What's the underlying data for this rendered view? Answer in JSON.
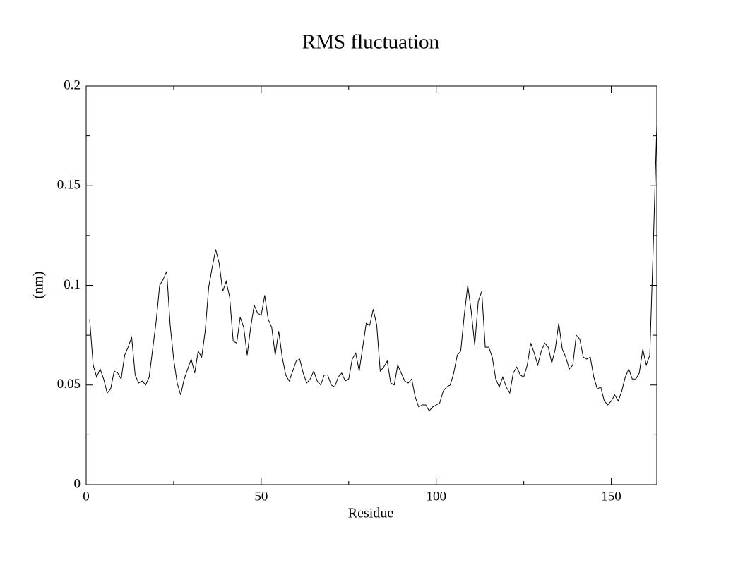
{
  "chart_data": {
    "type": "line",
    "title": "RMS fluctuation",
    "x_label": "Residue",
    "y_label": "(nm)",
    "color": "#000000",
    "xlim": [
      0,
      163
    ],
    "ylim": [
      0,
      0.2
    ],
    "xticks": [
      0,
      50,
      100,
      150
    ],
    "yticks": [
      0,
      0.05,
      0.1,
      0.15,
      0.2
    ],
    "xminorticks": [
      25,
      75,
      125
    ],
    "yminorticks": [
      0.025,
      0.075,
      0.125,
      0.175
    ],
    "x": [
      1,
      2,
      3,
      4,
      5,
      6,
      7,
      8,
      9,
      10,
      11,
      12,
      13,
      14,
      15,
      16,
      17,
      18,
      19,
      20,
      21,
      22,
      23,
      24,
      25,
      26,
      27,
      28,
      29,
      30,
      31,
      32,
      33,
      34,
      35,
      36,
      37,
      38,
      39,
      40,
      41,
      42,
      43,
      44,
      45,
      46,
      47,
      48,
      49,
      50,
      51,
      52,
      53,
      54,
      55,
      56,
      57,
      58,
      59,
      60,
      61,
      62,
      63,
      64,
      65,
      66,
      67,
      68,
      69,
      70,
      71,
      72,
      73,
      74,
      75,
      76,
      77,
      78,
      79,
      80,
      81,
      82,
      83,
      84,
      85,
      86,
      87,
      88,
      89,
      90,
      91,
      92,
      93,
      94,
      95,
      96,
      97,
      98,
      99,
      100,
      101,
      102,
      103,
      104,
      105,
      106,
      107,
      108,
      109,
      110,
      111,
      112,
      113,
      114,
      115,
      116,
      117,
      118,
      119,
      120,
      121,
      122,
      123,
      124,
      125,
      126,
      127,
      128,
      129,
      130,
      131,
      132,
      133,
      134,
      135,
      136,
      137,
      138,
      139,
      140,
      141,
      142,
      143,
      144,
      145,
      146,
      147,
      148,
      149,
      150,
      151,
      152,
      153,
      154,
      155,
      156,
      157,
      158,
      159,
      160,
      161,
      162,
      163
    ],
    "values": [
      0.083,
      0.06,
      0.054,
      0.058,
      0.053,
      0.046,
      0.048,
      0.057,
      0.056,
      0.053,
      0.065,
      0.069,
      0.074,
      0.055,
      0.051,
      0.052,
      0.05,
      0.054,
      0.068,
      0.082,
      0.1,
      0.103,
      0.107,
      0.08,
      0.063,
      0.051,
      0.045,
      0.053,
      0.058,
      0.063,
      0.056,
      0.067,
      0.064,
      0.077,
      0.099,
      0.109,
      0.118,
      0.111,
      0.097,
      0.102,
      0.094,
      0.072,
      0.071,
      0.084,
      0.079,
      0.065,
      0.079,
      0.09,
      0.086,
      0.085,
      0.095,
      0.083,
      0.079,
      0.065,
      0.077,
      0.064,
      0.055,
      0.052,
      0.057,
      0.062,
      0.063,
      0.056,
      0.051,
      0.053,
      0.057,
      0.052,
      0.05,
      0.055,
      0.055,
      0.05,
      0.049,
      0.054,
      0.056,
      0.052,
      0.053,
      0.063,
      0.066,
      0.057,
      0.069,
      0.081,
      0.08,
      0.088,
      0.08,
      0.057,
      0.059,
      0.062,
      0.051,
      0.05,
      0.06,
      0.056,
      0.052,
      0.051,
      0.053,
      0.044,
      0.039,
      0.04,
      0.04,
      0.037,
      0.039,
      0.04,
      0.041,
      0.047,
      0.049,
      0.05,
      0.056,
      0.065,
      0.067,
      0.085,
      0.1,
      0.087,
      0.07,
      0.092,
      0.097,
      0.069,
      0.069,
      0.064,
      0.053,
      0.049,
      0.054,
      0.049,
      0.046,
      0.056,
      0.059,
      0.055,
      0.054,
      0.06,
      0.071,
      0.066,
      0.06,
      0.067,
      0.071,
      0.069,
      0.061,
      0.068,
      0.081,
      0.068,
      0.064,
      0.058,
      0.06,
      0.075,
      0.073,
      0.064,
      0.063,
      0.064,
      0.054,
      0.048,
      0.049,
      0.042,
      0.04,
      0.042,
      0.045,
      0.042,
      0.047,
      0.054,
      0.058,
      0.053,
      0.053,
      0.056,
      0.068,
      0.06,
      0.065,
      0.12,
      0.18
    ]
  }
}
